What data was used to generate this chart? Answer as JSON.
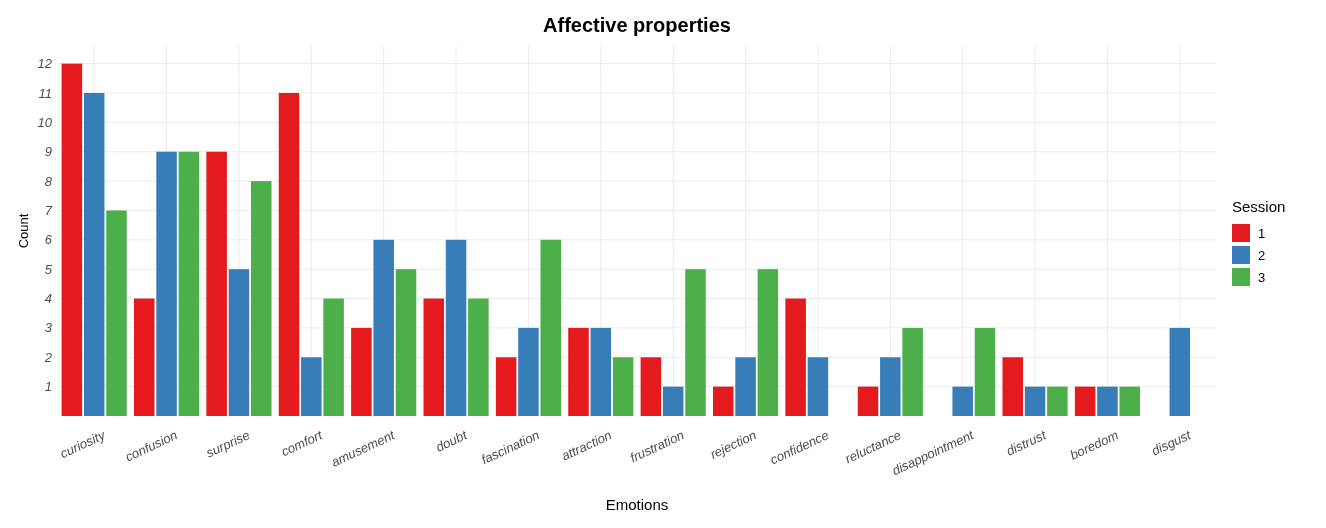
{
  "chart_data": {
    "type": "bar",
    "title": "Affective properties",
    "xlabel": "Emotions",
    "ylabel": "Count",
    "legend_title": "Session",
    "categories": [
      "curiosity",
      "confusion",
      "surprise",
      "comfort",
      "amusement",
      "doubt",
      "fascination",
      "attraction",
      "frustration",
      "rejection",
      "confidence",
      "reluctance",
      "disappointment",
      "distrust",
      "boredom",
      "disgust"
    ],
    "series": [
      {
        "name": "1",
        "color": "#e41a1c",
        "values": [
          12,
          4,
          9,
          11,
          3,
          4,
          2,
          3,
          2,
          1,
          4,
          1,
          null,
          2,
          1,
          null
        ]
      },
      {
        "name": "2",
        "color": "#377eb8",
        "values": [
          11,
          9,
          5,
          2,
          6,
          6,
          3,
          3,
          1,
          2,
          2,
          2,
          1,
          1,
          1,
          3
        ]
      },
      {
        "name": "3",
        "color": "#4daf4a",
        "values": [
          7,
          9,
          8,
          4,
          5,
          4,
          6,
          2,
          5,
          5,
          null,
          3,
          3,
          1,
          1,
          null
        ]
      }
    ],
    "ylim": [
      0,
      12.6
    ],
    "yticks": [
      1,
      2,
      3,
      4,
      5,
      6,
      7,
      8,
      9,
      10,
      11,
      12
    ],
    "grid": true,
    "legend": "right"
  }
}
